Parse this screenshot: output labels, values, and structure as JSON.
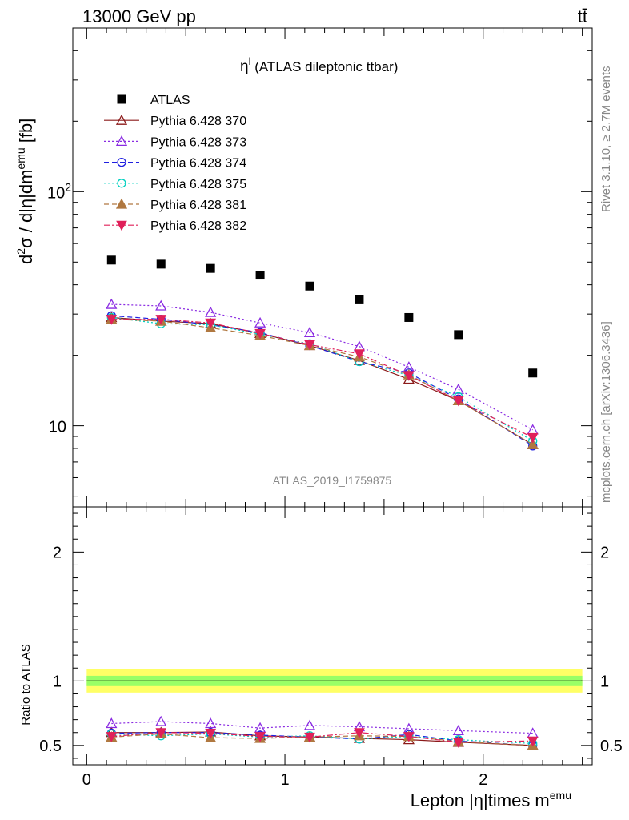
{
  "header": {
    "left": "13000 GeV pp",
    "right": "tt̄"
  },
  "side_labels": {
    "rivet": "Rivet 3.1.10, ≥ 2.7M events",
    "mcplots": "mcplots.cern.ch [arXiv:1306.3436]"
  },
  "chart_data": [
    {
      "type": "scatter",
      "panel": "main",
      "title_main": "η",
      "title_sup": "l",
      "title_rest": " (ATLAS dileptonic ttbar)",
      "ylabel": "d²σ / d|η|dm^emu [fb]",
      "ylabel_parts": {
        "d": "d",
        "sup2": "2",
        "sigma": "σ / d|η|dm",
        "supemu": "emu",
        "unit": " [fb]"
      },
      "yscale": "log",
      "ylim": [
        4.5,
        500
      ],
      "y_tick_labels": [
        {
          "value": 10,
          "label": "10"
        },
        {
          "value": 100,
          "base": "10",
          "exp": "2"
        }
      ],
      "watermark": "ATLAS_2019_I1759875",
      "legend_position": "top-left",
      "x": [
        0.125,
        0.375,
        0.625,
        0.875,
        1.125,
        1.375,
        1.625,
        1.875,
        2.25
      ],
      "series": [
        {
          "name": "ATLAS",
          "color": "#000000",
          "marker": "square-filled",
          "line": "none",
          "values": [
            51,
            49,
            47,
            44,
            39.5,
            34.5,
            29,
            24.5,
            16.8
          ]
        },
        {
          "name": "Pythia 6.428 370",
          "color": "#8b1a1a",
          "marker": "triangle-up-open",
          "line": "solid",
          "values": [
            29,
            28,
            27.3,
            24.8,
            22,
            19,
            15.8,
            12.8,
            8.3
          ]
        },
        {
          "name": "Pythia 6.428 373",
          "color": "#8a2be2",
          "marker": "triangle-up-open",
          "line": "dotted",
          "values": [
            33,
            32.5,
            30.5,
            27.5,
            25,
            21.8,
            17.8,
            14.3,
            9.6
          ]
        },
        {
          "name": "Pythia 6.428 374",
          "color": "#1f1fe0",
          "marker": "circle-open",
          "line": "dashed",
          "values": [
            29.5,
            28.5,
            27,
            25,
            22,
            18.8,
            16.8,
            13,
            8.2
          ]
        },
        {
          "name": "Pythia 6.428 375",
          "color": "#00d0c0",
          "marker": "circle-open",
          "line": "dotted",
          "values": [
            29,
            27.3,
            27,
            24.6,
            22.4,
            18.8,
            16.4,
            13.3,
            8.6
          ]
        },
        {
          "name": "Pythia 6.428 381",
          "color": "#b07840",
          "marker": "triangle-up-filled",
          "line": "dashed",
          "values": [
            28.5,
            28,
            26.2,
            24.3,
            22,
            19.7,
            16.5,
            12.8,
            8.3
          ]
        },
        {
          "name": "Pythia 6.428 382",
          "color": "#e0205a",
          "marker": "triangle-down-filled",
          "line": "dashdot",
          "values": [
            28.5,
            28.5,
            27.5,
            24.8,
            22.2,
            20.3,
            16.4,
            12.8,
            8.9
          ]
        }
      ]
    },
    {
      "type": "scatter",
      "panel": "ratio",
      "ylabel": "Ratio to ATLAS",
      "xlabel": "Lepton |η|times m",
      "xlabel_sup": "emu",
      "xlim": [
        -0.07,
        2.55
      ],
      "ylim": [
        0.35,
        2.35
      ],
      "x_tick_labels": [
        "0",
        "1",
        "2"
      ],
      "y_tick_labels": [
        "0.5",
        "1",
        "2"
      ],
      "band": {
        "inner_color": "#99ff66",
        "outer_color": "#ffff66"
      },
      "x": [
        0.125,
        0.375,
        0.625,
        0.875,
        1.125,
        1.375,
        1.625,
        1.875,
        2.25
      ],
      "series": [
        {
          "name": "Pythia 6.428 370",
          "color": "#8b1a1a",
          "marker": "triangle-up-open",
          "line": "solid",
          "values": [
            0.6,
            0.6,
            0.605,
            0.575,
            0.565,
            0.555,
            0.545,
            0.525,
            0.5
          ]
        },
        {
          "name": "Pythia 6.428 373",
          "color": "#8a2be2",
          "marker": "triangle-up-open",
          "line": "dotted",
          "values": [
            0.67,
            0.685,
            0.67,
            0.635,
            0.655,
            0.645,
            0.63,
            0.615,
            0.595
          ]
        },
        {
          "name": "Pythia 6.428 374",
          "color": "#1f1fe0",
          "marker": "circle-open",
          "line": "dashed",
          "values": [
            0.595,
            0.6,
            0.6,
            0.58,
            0.565,
            0.55,
            0.585,
            0.535,
            0.5
          ]
        },
        {
          "name": "Pythia 6.428 375",
          "color": "#00d0c0",
          "marker": "circle-open",
          "line": "dotted",
          "values": [
            0.59,
            0.575,
            0.59,
            0.565,
            0.575,
            0.55,
            0.57,
            0.545,
            0.515
          ]
        },
        {
          "name": "Pythia 6.428 381",
          "color": "#b07840",
          "marker": "triangle-up-filled",
          "line": "dashed",
          "values": [
            0.565,
            0.59,
            0.56,
            0.555,
            0.565,
            0.575,
            0.57,
            0.53,
            0.5
          ]
        },
        {
          "name": "Pythia 6.428 382",
          "color": "#e0205a",
          "marker": "triangle-down-filled",
          "line": "dashdot",
          "values": [
            0.57,
            0.6,
            0.595,
            0.57,
            0.565,
            0.6,
            0.57,
            0.525,
            0.535
          ]
        }
      ]
    }
  ]
}
